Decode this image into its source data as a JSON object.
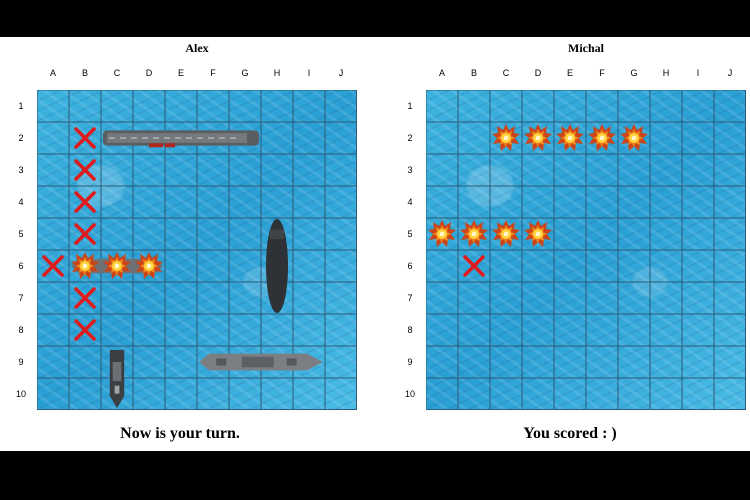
{
  "columns": [
    "A",
    "B",
    "C",
    "D",
    "E",
    "F",
    "G",
    "H",
    "I",
    "J"
  ],
  "rows": [
    "1",
    "2",
    "3",
    "4",
    "5",
    "6",
    "7",
    "8",
    "9",
    "10"
  ],
  "boards": [
    {
      "name": "Alex",
      "status": "Now is your turn.",
      "misses": [
        [
          "B",
          2
        ],
        [
          "B",
          3
        ],
        [
          "B",
          4
        ],
        [
          "B",
          5
        ],
        [
          "A",
          6
        ],
        [
          "B",
          7
        ],
        [
          "B",
          8
        ]
      ],
      "hits": [
        [
          "B",
          6
        ],
        [
          "C",
          6
        ],
        [
          "D",
          6
        ]
      ],
      "ships": [
        {
          "type": "carrier",
          "start": [
            "C",
            2
          ],
          "length": 5,
          "orientation": "horizontal"
        },
        {
          "type": "destroyer",
          "start": [
            "B",
            6
          ],
          "length": 3,
          "orientation": "horizontal"
        },
        {
          "type": "submarine",
          "start": [
            "H",
            5
          ],
          "length": 3,
          "orientation": "vertical"
        },
        {
          "type": "battleship",
          "start": [
            "F",
            9
          ],
          "length": 4,
          "orientation": "horizontal"
        },
        {
          "type": "patrol-boat",
          "start": [
            "C",
            9
          ],
          "length": 2,
          "orientation": "vertical"
        }
      ]
    },
    {
      "name": "Michal",
      "status": "You scored : )",
      "misses": [
        [
          "B",
          6
        ]
      ],
      "hits": [
        [
          "C",
          2
        ],
        [
          "D",
          2
        ],
        [
          "E",
          2
        ],
        [
          "F",
          2
        ],
        [
          "G",
          2
        ],
        [
          "A",
          5
        ],
        [
          "B",
          5
        ],
        [
          "C",
          5
        ],
        [
          "D",
          5
        ]
      ],
      "ships": []
    }
  ]
}
